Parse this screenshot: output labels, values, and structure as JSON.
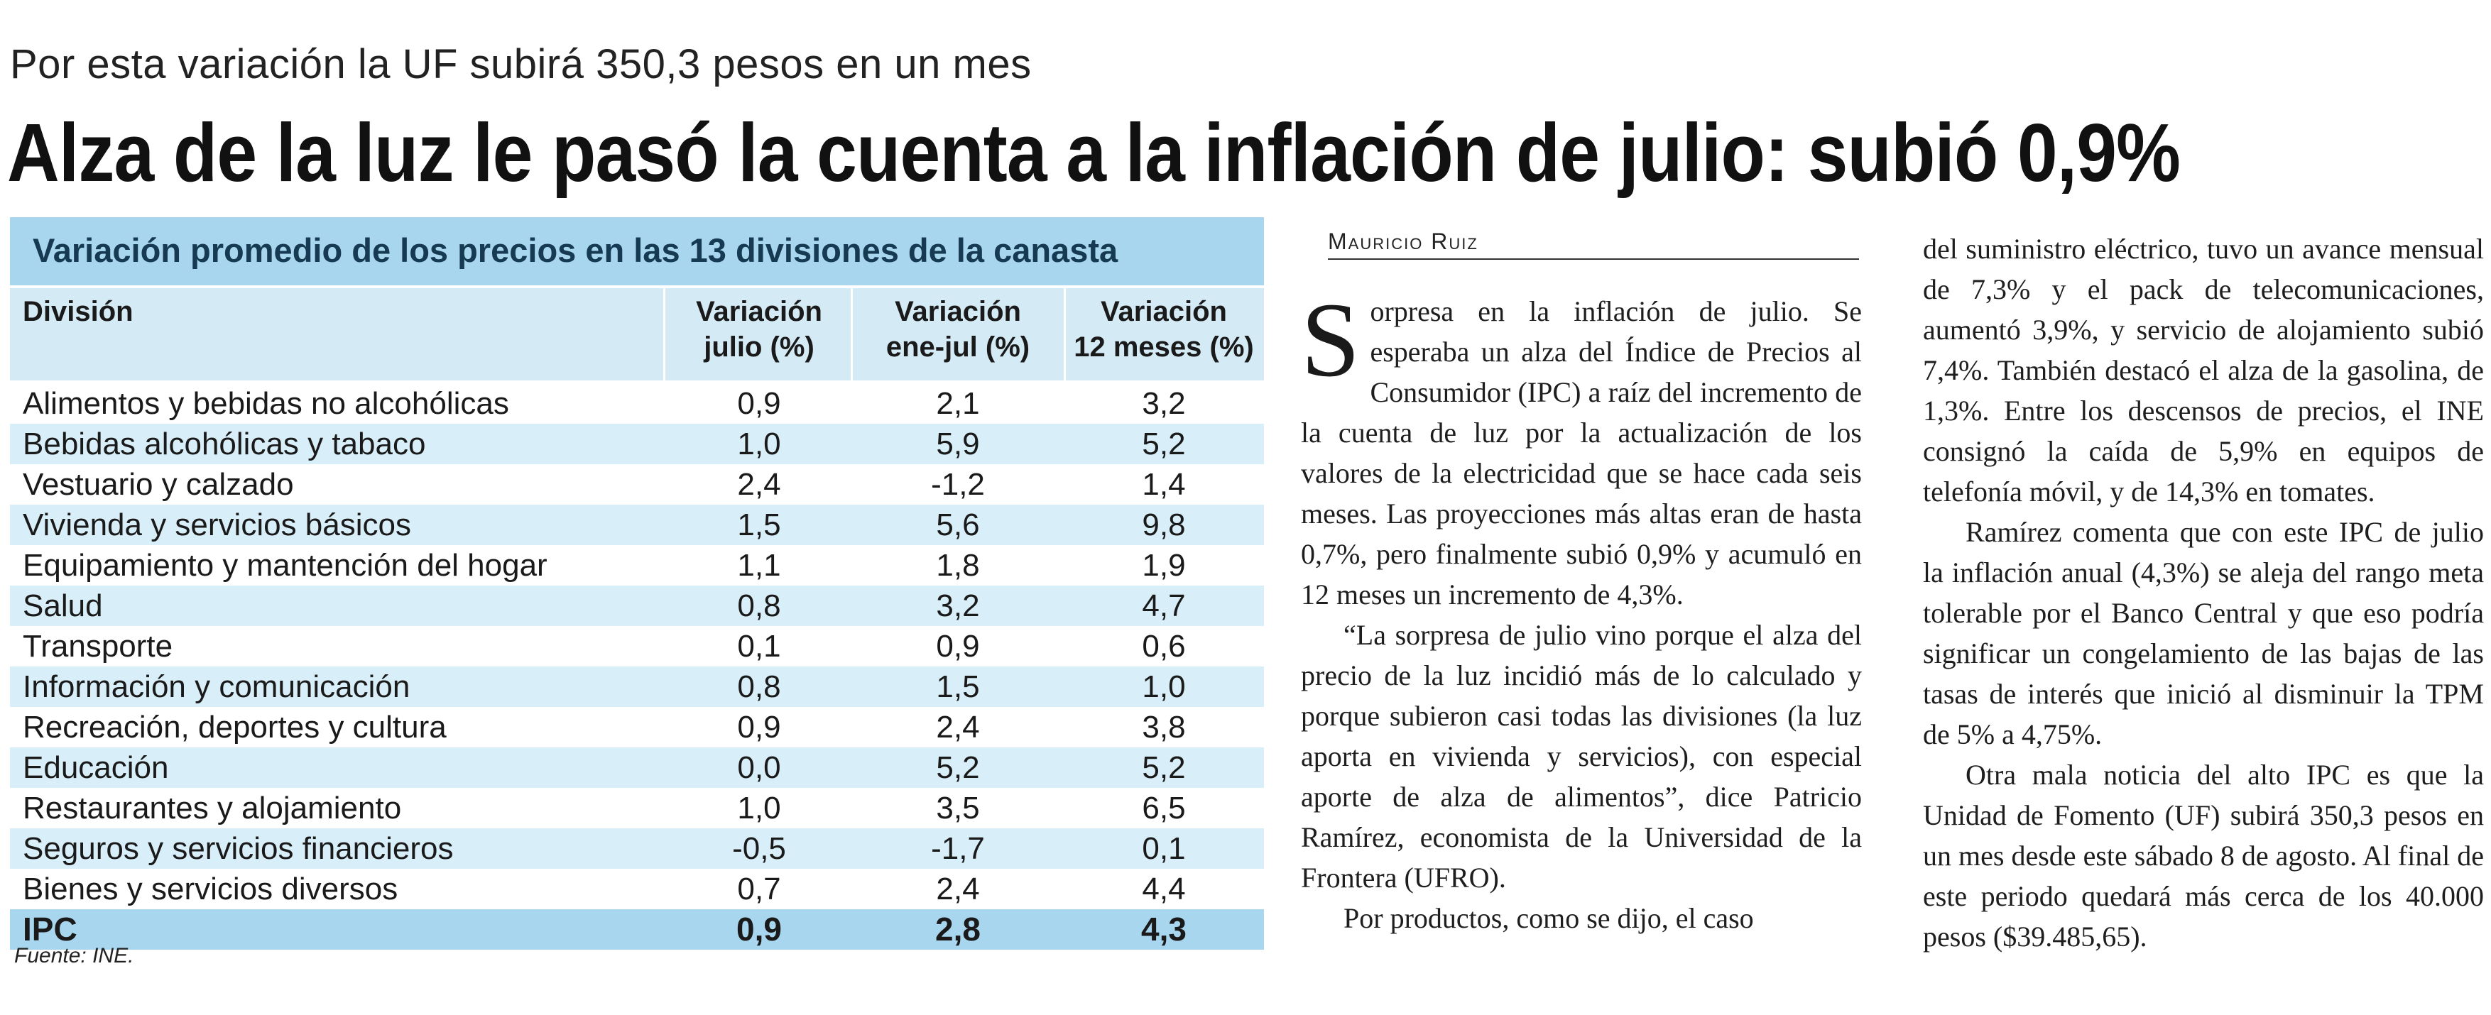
{
  "kicker": "Por esta variación la UF subirá 350,3 pesos en un mes",
  "headline": "Alza de la luz le pasó la cuenta a la inflación de julio: subió 0,9%",
  "table": {
    "title": "Variación promedio de los precios en las 13 divisiones de la canasta",
    "headers": {
      "division": "División",
      "july_1": "Variación",
      "july_2": "julio (%)",
      "ytd_1": "Variación",
      "ytd_2": "ene-jul (%)",
      "y12_1": "Variación",
      "y12_2": "12 meses (%)"
    },
    "rows": [
      {
        "division": "Alimentos y bebidas no alcohólicas",
        "july": "0,9",
        "ytd": "2,1",
        "y12": "3,2"
      },
      {
        "division": "Bebidas alcohólicas y tabaco",
        "july": "1,0",
        "ytd": "5,9",
        "y12": "5,2"
      },
      {
        "division": "Vestuario y calzado",
        "july": "2,4",
        "ytd": "-1,2",
        "y12": "1,4"
      },
      {
        "division": "Vivienda y servicios básicos",
        "july": "1,5",
        "ytd": "5,6",
        "y12": "9,8"
      },
      {
        "division": "Equipamiento y mantención del hogar",
        "july": "1,1",
        "ytd": "1,8",
        "y12": "1,9"
      },
      {
        "division": "Salud",
        "july": "0,8",
        "ytd": "3,2",
        "y12": "4,7"
      },
      {
        "division": "Transporte",
        "july": "0,1",
        "ytd": "0,9",
        "y12": "0,6"
      },
      {
        "division": "Información y comunicación",
        "july": "0,8",
        "ytd": "1,5",
        "y12": "1,0"
      },
      {
        "division": "Recreación, deportes y cultura",
        "july": "0,9",
        "ytd": "2,4",
        "y12": "3,8"
      },
      {
        "division": "Educación",
        "july": "0,0",
        "ytd": "5,2",
        "y12": "5,2"
      },
      {
        "division": "Restaurantes y alojamiento",
        "july": "1,0",
        "ytd": "3,5",
        "y12": "6,5"
      },
      {
        "division": "Seguros y servicios financieros",
        "july": "-0,5",
        "ytd": "-1,7",
        "y12": "0,1"
      },
      {
        "division": "Bienes y servicios diversos",
        "july": "0,7",
        "ytd": "2,4",
        "y12": "4,4"
      }
    ],
    "total": {
      "division": "IPC",
      "july": "0,9",
      "ytd": "2,8",
      "y12": "4,3"
    },
    "source": "Fuente: INE."
  },
  "article": {
    "byline": "Mauricio Ruiz",
    "dropcap": "S",
    "col1": [
      "orpresa en la inflación de julio. Se esperaba un alza del Índice de Precios al Consumidor (IPC) a raíz del incremento de la cuenta de luz por la actualización de los valores de la electricidad que se hace cada seis meses. Las proyecciones más altas eran de hasta 0,7%, pero finalmente subió 0,9% y acumuló en 12 meses un incremento de 4,3%.",
      "“La sorpresa de julio vino porque el alza del precio de la luz incidió más de lo calculado y porque subieron casi todas las divisiones (la luz aporta en vivienda y servicios), con especial aporte de alza de alimentos”, dice Patricio Ramírez, economista de la Universidad de la Frontera (UFRO).",
      "Por productos, como se dijo, el caso"
    ],
    "col2": [
      "del suministro eléctrico, tuvo un avance mensual de 7,3% y el pack de telecomunicaciones, aumentó 3,9%, y servicio de alojamiento subió 7,4%. También destacó el alza de la gasolina, de 1,3%. Entre los descensos de precios, el INE consignó la caída de 5,9% en equipos de telefonía móvil, y de 14,3% en tomates.",
      "Ramírez comenta que con este IPC de julio la inflación anual (4,3%) se aleja del rango meta tolerable por el Banco Central y que eso podría significar un congelamiento de las bajas de las tasas de interés que inició al disminuir la TPM de 5% a 4,75%.",
      "Otra mala noticia del alto IPC es que la Unidad de Fomento (UF) subirá 350,3 pesos en un mes desde este sábado 8 de agosto. Al final de este periodo quedará más cerca de los 40.000 pesos ($39.485,65)."
    ]
  },
  "colors": {
    "title_bar": "#a7d6ee",
    "header_bg": "#d4eaf5",
    "row_shade": "#d8eef8"
  }
}
